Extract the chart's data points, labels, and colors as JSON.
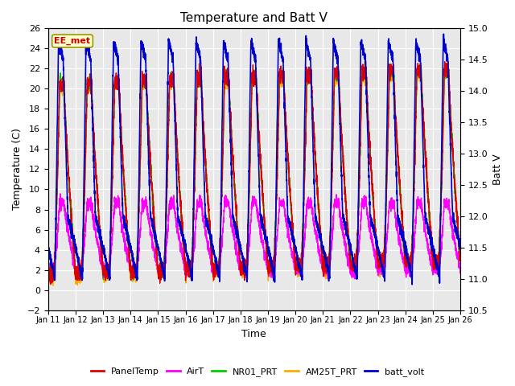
{
  "title": "Temperature and Batt V",
  "xlabel": "Time",
  "ylabel_left": "Temperature (C)",
  "ylabel_right": "Batt V",
  "ylim_left": [
    -2,
    26
  ],
  "ylim_right": [
    10.5,
    15.0
  ],
  "yticks_left": [
    -2,
    0,
    2,
    4,
    6,
    8,
    10,
    12,
    14,
    16,
    18,
    20,
    22,
    24,
    26
  ],
  "yticks_right": [
    10.5,
    11.0,
    11.5,
    12.0,
    12.5,
    13.0,
    13.5,
    14.0,
    14.5,
    15.0
  ],
  "xtick_labels": [
    "Jan 11",
    "Jan 12",
    "Jan 13",
    "Jan 14",
    "Jan 15",
    "Jan 16",
    "Jan 17",
    "Jan 18",
    "Jan 19",
    "Jan 20",
    "Jan 21",
    "Jan 22",
    "Jan 23",
    "Jan 24",
    "Jan 25",
    "Jan 26"
  ],
  "annotation_text": "EE_met",
  "annotation_color": "#cc0000",
  "annotation_bg": "#ffffcc",
  "plot_bg": "#e8e8e8",
  "series": {
    "PanelTemp": {
      "color": "#dd0000",
      "lw": 1.0
    },
    "AirT": {
      "color": "#ff00ff",
      "lw": 1.0
    },
    "NR01_PRT": {
      "color": "#00cc00",
      "lw": 1.0
    },
    "AM25T_PRT": {
      "color": "#ffaa00",
      "lw": 1.0
    },
    "batt_volt": {
      "color": "#0000cc",
      "lw": 1.2
    }
  },
  "legend_colors": {
    "PanelTemp": "#dd0000",
    "AirT": "#ff00ff",
    "NR01_PRT": "#00cc00",
    "AM25T_PRT": "#ffaa00",
    "batt_volt": "#0000cc"
  },
  "n_days": 15,
  "pts_per_day": 288
}
